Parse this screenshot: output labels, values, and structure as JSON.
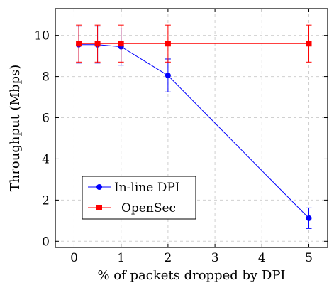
{
  "chart_data": {
    "type": "line",
    "xlabel": "% of packets dropped by DPI",
    "ylabel": "Throughput (Mbps)",
    "xlim": [
      -0.4,
      5.4
    ],
    "ylim": [
      -0.3,
      11.3
    ],
    "xticks": [
      0,
      1,
      2,
      3,
      4,
      5
    ],
    "yticks": [
      0,
      2,
      4,
      6,
      8,
      10
    ],
    "grid": true,
    "legend_position": "bottom-left",
    "series": [
      {
        "name": "In-line DPI",
        "color": "#0000ff",
        "marker": "circle",
        "x": [
          0.1,
          0.5,
          1,
          2,
          5
        ],
        "y": [
          9.55,
          9.55,
          9.45,
          8.05,
          1.12
        ],
        "err": [
          0.9,
          0.9,
          0.9,
          0.8,
          0.5
        ]
      },
      {
        "name": "OpenSec",
        "color": "#ff0000",
        "marker": "square",
        "x": [
          0.1,
          0.5,
          1,
          2,
          5
        ],
        "y": [
          9.6,
          9.6,
          9.6,
          9.6,
          9.6
        ],
        "err": [
          0.9,
          0.9,
          0.9,
          0.9,
          0.9
        ]
      }
    ]
  }
}
